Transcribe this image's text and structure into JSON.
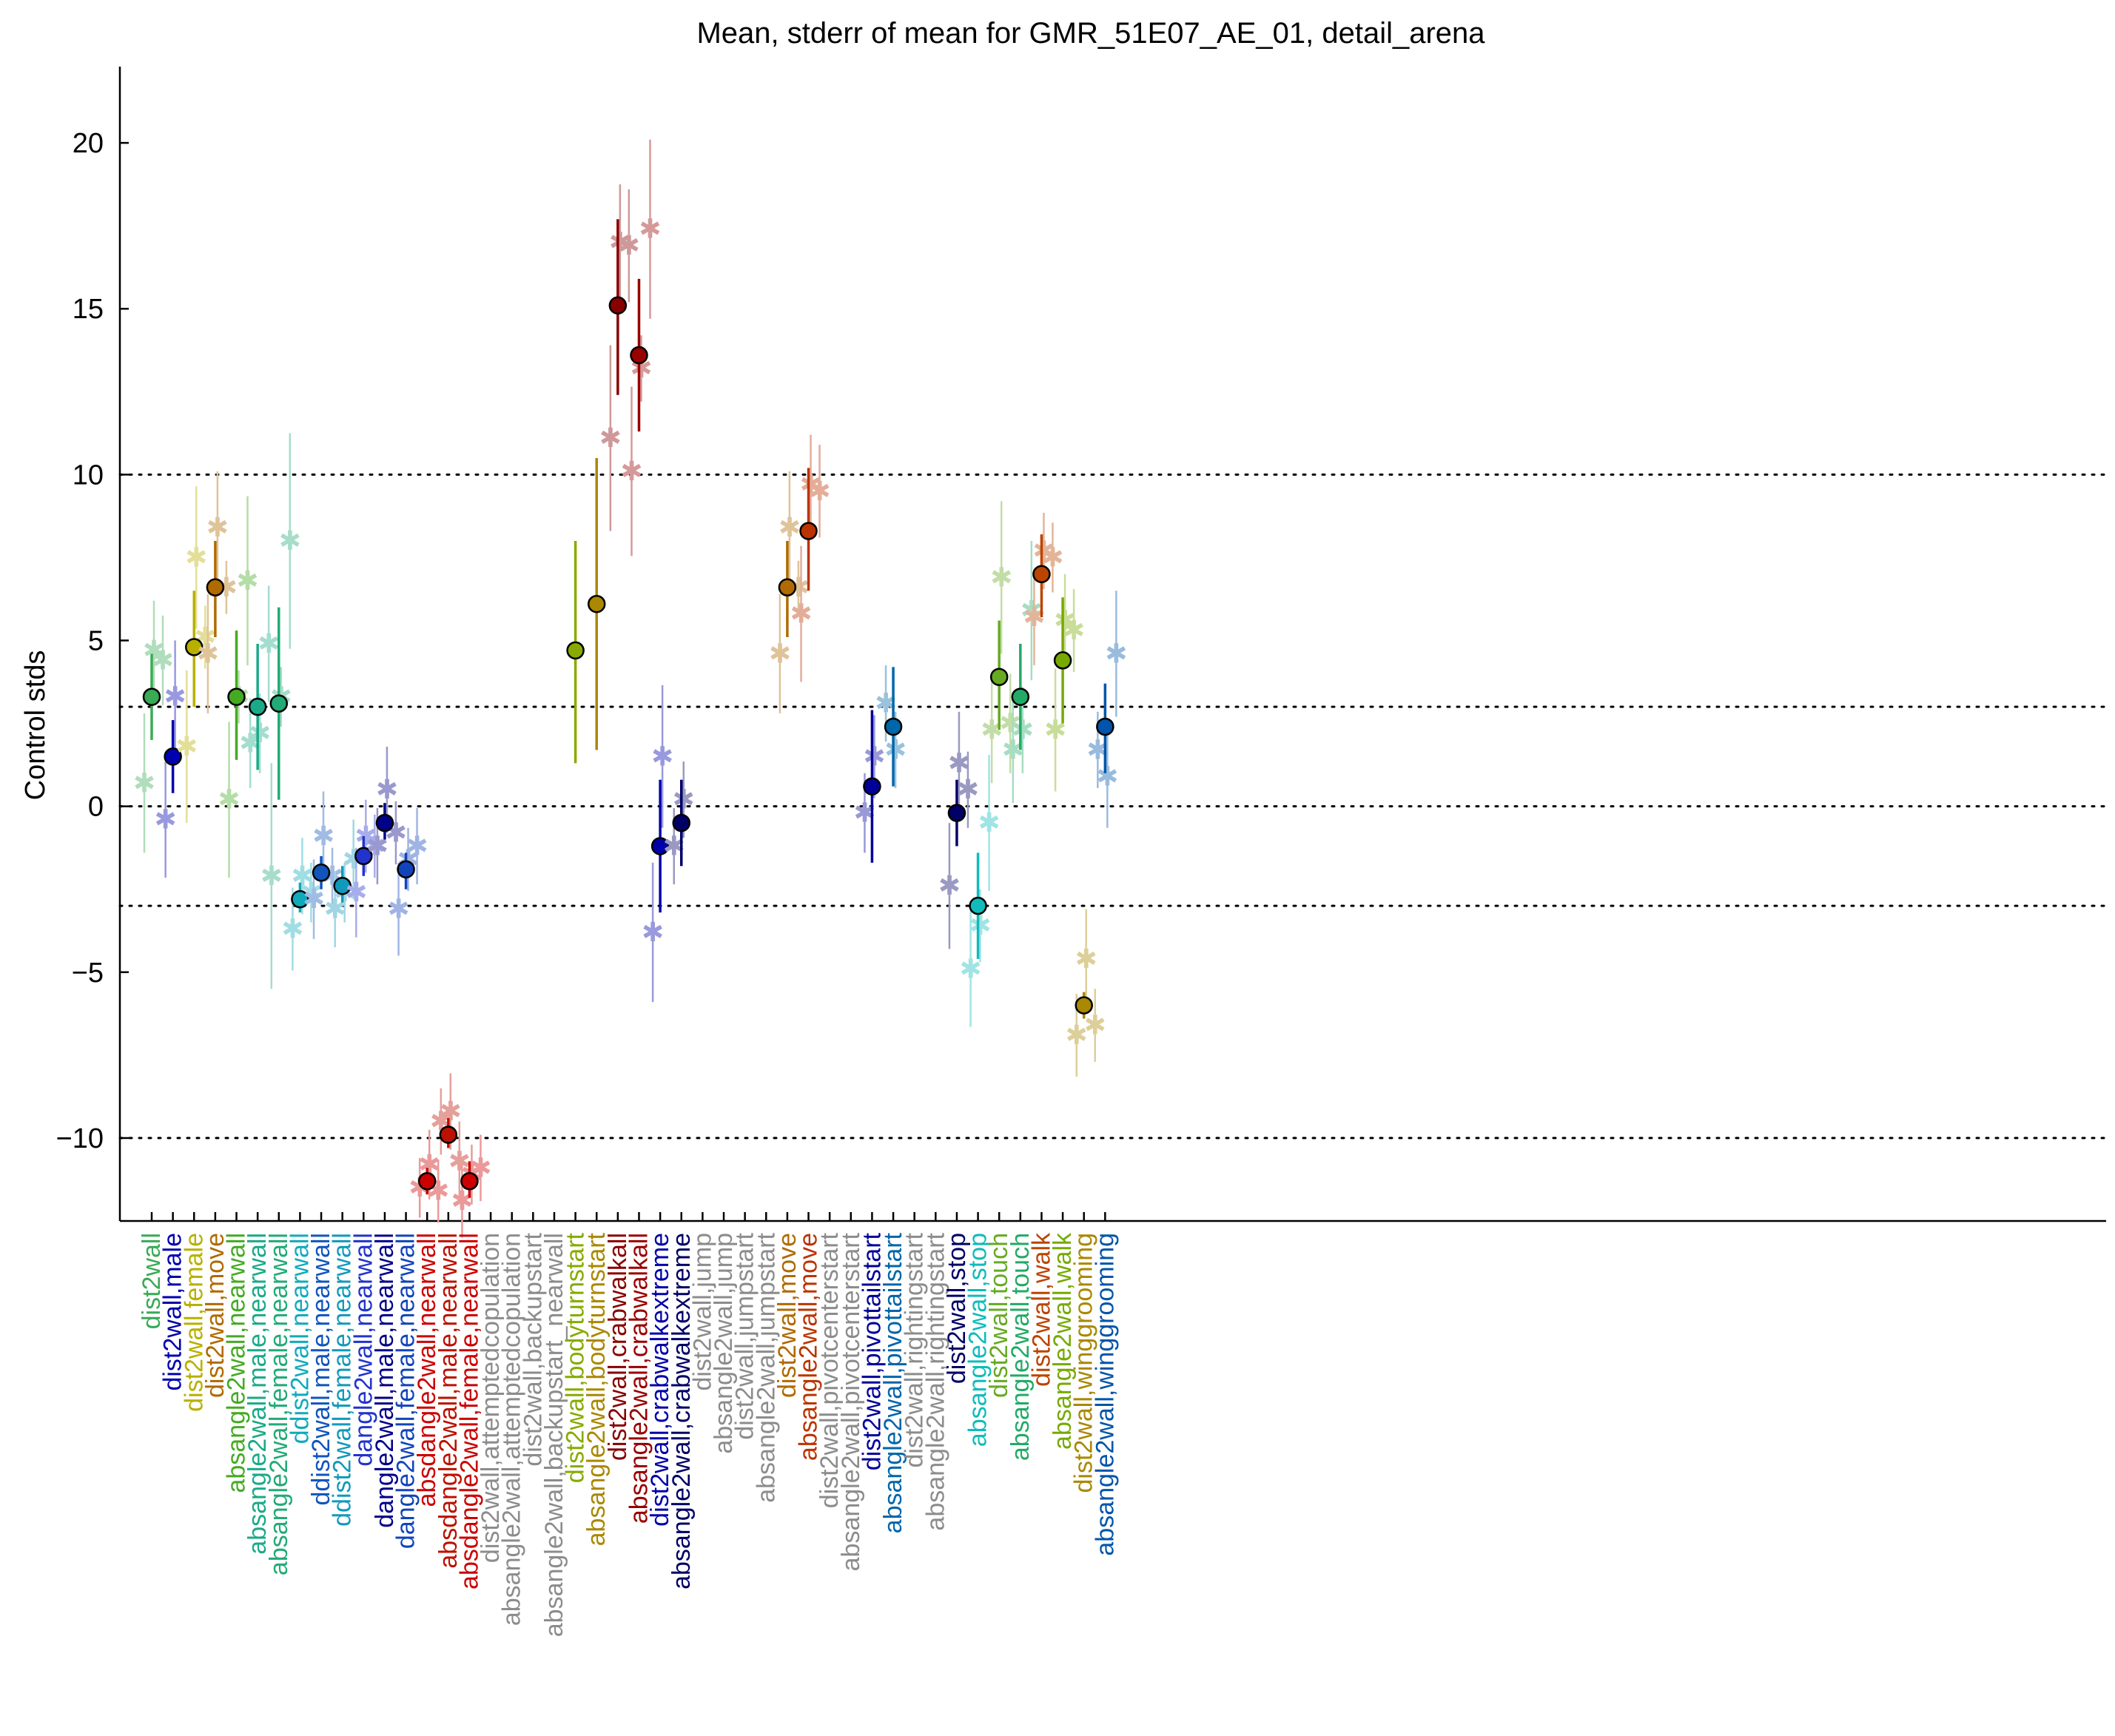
{
  "chart_data": {
    "type": "scatter",
    "title": "Mean, stderr of mean for GMR_51E07_AE_01, detail_arena",
    "xlabel": "",
    "ylabel": "Control stds",
    "ylim": [
      -12.5,
      22.3
    ],
    "yticks": [
      20,
      15,
      10,
      5,
      0,
      -5,
      -10
    ],
    "ytick_labels": [
      "20",
      "15",
      "10",
      "5",
      "0",
      "−5",
      "−10"
    ],
    "reference_lines": [
      10,
      3,
      0,
      -3,
      -10
    ],
    "grid": false,
    "legend": "none",
    "categories": [
      {
        "label": "dist2wall",
        "color": "#3aaa55",
        "mean": 3.3,
        "lo": 2.0,
        "hi": 4.6,
        "stars": [
          0.7,
          4.7,
          4.4
        ]
      },
      {
        "label": "dist2wall,male",
        "color": "#0000b0",
        "mean": 1.5,
        "lo": 0.4,
        "hi": 2.6,
        "stars": [
          -0.4,
          3.3
        ]
      },
      {
        "label": "dist2wall,female",
        "color": "#b8b000",
        "mean": 4.8,
        "lo": 3.0,
        "hi": 6.5,
        "stars": [
          1.8,
          7.5,
          5.1
        ]
      },
      {
        "label": "dist2wall,move",
        "color": "#b06a00",
        "mean": 6.6,
        "lo": 5.1,
        "hi": 8.0,
        "stars": [
          4.6,
          8.4,
          6.6
        ]
      },
      {
        "label": "absangle2wall,nearwall",
        "color": "#44aa22",
        "mean": 3.3,
        "lo": 1.4,
        "hi": 5.3,
        "stars": [
          0.2,
          3.3,
          6.8
        ]
      },
      {
        "label": "absangle2wall,male,nearwall",
        "color": "#1aaa88",
        "mean": 3.0,
        "lo": 1.1,
        "hi": 4.9,
        "stars": [
          1.9,
          2.2,
          4.9
        ]
      },
      {
        "label": "absangle2wall,female,nearwall",
        "color": "#22aa77",
        "mean": 3.1,
        "lo": 0.2,
        "hi": 6.0,
        "stars": [
          -2.1,
          3.3,
          8.0
        ]
      },
      {
        "label": "ddist2wall,nearwall",
        "color": "#11aabb",
        "mean": -2.8,
        "lo": -3.2,
        "hi": -2.3,
        "stars": [
          -3.7,
          -2.1,
          -2.6
        ]
      },
      {
        "label": "ddist2wall,male,nearwall",
        "color": "#1155bb",
        "mean": -2.0,
        "lo": -2.5,
        "hi": -1.5,
        "stars": [
          -2.8,
          -0.9,
          -2.1
        ]
      },
      {
        "label": "ddist2wall,female,nearwall",
        "color": "#1199bb",
        "mean": -2.4,
        "lo": -2.9,
        "hi": -1.8,
        "stars": [
          -3.1,
          -2.6,
          -1.6
        ]
      },
      {
        "label": "dangle2wall,nearwall",
        "color": "#2233cc",
        "mean": -1.5,
        "lo": -2.1,
        "hi": -0.9,
        "stars": [
          -2.6,
          -0.9,
          -1.2
        ]
      },
      {
        "label": "dangle2wall,male,nearwall",
        "color": "#000088",
        "mean": -0.5,
        "lo": -1.0,
        "hi": 0.1,
        "stars": [
          -1.2,
          0.5,
          -0.8
        ]
      },
      {
        "label": "dangle2wall,female,nearwall",
        "color": "#1144bb",
        "mean": -1.9,
        "lo": -2.5,
        "hi": -1.4,
        "stars": [
          -3.1,
          -1.6,
          -1.2
        ]
      },
      {
        "label": "absdangle2wall,nearwall",
        "color": "#cc0000",
        "mean": -11.3,
        "lo": -11.7,
        "hi": -10.9,
        "stars": [
          -11.5,
          -10.8,
          -11.6
        ]
      },
      {
        "label": "absdangle2wall,male,nearwall",
        "color": "#bb1100",
        "mean": -9.9,
        "lo": -10.3,
        "hi": -9.4,
        "stars": [
          -9.5,
          -9.2,
          -10.7
        ]
      },
      {
        "label": "absdangle2wall,female,nearwall",
        "color": "#cc0000",
        "mean": -11.3,
        "lo": -11.8,
        "hi": -10.7,
        "stars": [
          -11.9,
          -11.1,
          -10.9
        ]
      },
      {
        "label": "dist2wall,attemptedcopulation",
        "color": "#8c8c8c",
        "mean": null
      },
      {
        "label": "absangle2wall,attemptedcopulation",
        "color": "#8c8c8c",
        "mean": null
      },
      {
        "label": "dist2wall,backupstart",
        "color": "#8c8c8c",
        "mean": null
      },
      {
        "label": "absangle2wall,backupstart_nearwall",
        "color": "#8c8c8c",
        "mean": null
      },
      {
        "label": "dist2wall,bodyturnstart",
        "color": "#88aa00",
        "mean": 4.7,
        "lo": 1.3,
        "hi": 8.0,
        "stars": []
      },
      {
        "label": "absangle2wall,bodyturnstart",
        "color": "#aa8800",
        "mean": 6.1,
        "lo": 1.7,
        "hi": 10.5,
        "stars": []
      },
      {
        "label": "dist2wall,crabwalkall",
        "color": "#880000",
        "mean": 15.1,
        "lo": 12.4,
        "hi": 17.7,
        "stars": [
          11.1,
          17.0,
          16.9
        ]
      },
      {
        "label": "absangle2wall,crabwalkall",
        "color": "#990000",
        "mean": 13.6,
        "lo": 11.3,
        "hi": 15.9,
        "stars": [
          10.1,
          13.2,
          17.4
        ]
      },
      {
        "label": "dist2wall,crabwalkextreme",
        "color": "#0000aa",
        "mean": -1.2,
        "lo": -3.2,
        "hi": 0.8,
        "stars": [
          -3.8,
          1.5
        ]
      },
      {
        "label": "absangle2wall,crabwalkextreme",
        "color": "#000066",
        "mean": -0.5,
        "lo": -1.8,
        "hi": 0.8,
        "stars": [
          -1.2,
          0.2
        ]
      },
      {
        "label": "dist2wall,jump",
        "color": "#8c8c8c",
        "mean": null
      },
      {
        "label": "absangle2wall,jump",
        "color": "#8c8c8c",
        "mean": null
      },
      {
        "label": "dist2wall,jumpstart",
        "color": "#8c8c8c",
        "mean": null
      },
      {
        "label": "absangle2wall,jumpstart",
        "color": "#8c8c8c",
        "mean": null
      },
      {
        "label": "dist2wall,move",
        "color": "#b06a00",
        "mean": 6.6,
        "lo": 5.1,
        "hi": 8.0,
        "stars": [
          4.6,
          8.4,
          6.6
        ]
      },
      {
        "label": "absangle2wall,move",
        "color": "#bb3300",
        "mean": 8.3,
        "lo": 6.5,
        "hi": 10.2,
        "stars": [
          5.8,
          9.7,
          9.5
        ]
      },
      {
        "label": "dist2wall,pivotcenterstart",
        "color": "#8c8c8c",
        "mean": null
      },
      {
        "label": "absangle2wall,pivotcenterstart",
        "color": "#8c8c8c",
        "mean": null
      },
      {
        "label": "dist2wall,pivottailstart",
        "color": "#000099",
        "mean": 0.6,
        "lo": -1.7,
        "hi": 2.9,
        "stars": [
          -0.2,
          1.5
        ]
      },
      {
        "label": "absangle2wall,pivottailstart",
        "color": "#0066aa",
        "mean": 2.4,
        "lo": 0.6,
        "hi": 4.2,
        "stars": [
          3.1,
          1.7
        ]
      },
      {
        "label": "dist2wall,rightingstart",
        "color": "#8c8c8c",
        "mean": null
      },
      {
        "label": "absangle2wall,rightingstart",
        "color": "#8c8c8c",
        "mean": null
      },
      {
        "label": "dist2wall,stop",
        "color": "#000066",
        "mean": -0.2,
        "lo": -1.2,
        "hi": 0.8,
        "stars": [
          -2.4,
          1.3,
          0.5
        ]
      },
      {
        "label": "absangle2wall,stop",
        "color": "#11bbbb",
        "mean": -3.0,
        "lo": -4.6,
        "hi": -1.4,
        "stars": [
          -4.9,
          -3.6,
          -0.5
        ]
      },
      {
        "label": "dist2wall,touch",
        "color": "#66aa22",
        "mean": 3.9,
        "lo": 2.3,
        "hi": 5.6,
        "stars": [
          2.3,
          6.9,
          2.5
        ]
      },
      {
        "label": "absangle2wall,touch",
        "color": "#22aa66",
        "mean": 3.3,
        "lo": 1.7,
        "hi": 4.9,
        "stars": [
          1.7,
          2.3,
          5.9
        ]
      },
      {
        "label": "dist2wall,walk",
        "color": "#bb4400",
        "mean": 7.0,
        "lo": 5.7,
        "hi": 8.2,
        "stars": [
          5.7,
          7.7,
          7.5
        ]
      },
      {
        "label": "absangle2wall,walk",
        "color": "#77aa00",
        "mean": 4.4,
        "lo": 2.5,
        "hi": 6.3,
        "stars": [
          2.3,
          5.6,
          5.3
        ]
      },
      {
        "label": "dist2wall,winggrooming",
        "color": "#aa8800",
        "mean": -6.0,
        "lo": -6.4,
        "hi": -5.6,
        "stars": [
          -6.9,
          -4.6,
          -6.6
        ]
      },
      {
        "label": "absangle2wall,winggrooming",
        "color": "#0055aa",
        "mean": 2.4,
        "lo": 1.0,
        "hi": 3.7,
        "stars": [
          1.7,
          0.9,
          4.6
        ]
      }
    ]
  }
}
